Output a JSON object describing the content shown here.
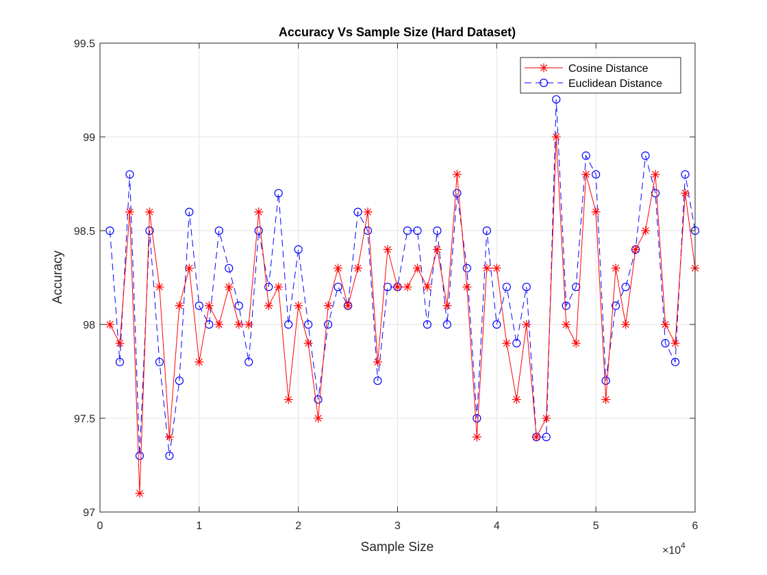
{
  "chart_data": {
    "type": "line",
    "title": "Accuracy Vs Sample Size (Hard Dataset)",
    "xlabel": "Sample Size",
    "ylabel": "Accuracy",
    "x_exponent_label": "×10",
    "x_exponent_power": "4",
    "xlim": [
      0,
      60000
    ],
    "ylim": [
      97,
      99.5
    ],
    "x_ticks": [
      0,
      10000,
      20000,
      30000,
      40000,
      50000,
      60000
    ],
    "x_tick_labels": [
      "0",
      "1",
      "2",
      "3",
      "4",
      "5",
      "6"
    ],
    "y_ticks": [
      97,
      97.5,
      98,
      98.5,
      99,
      99.5
    ],
    "y_tick_labels": [
      "97",
      "97.5",
      "98",
      "98.5",
      "99",
      "99.5"
    ],
    "grid": true,
    "legend_position": "top-right",
    "x": [
      1000,
      2000,
      3000,
      4000,
      5000,
      6000,
      7000,
      8000,
      9000,
      10000,
      11000,
      12000,
      13000,
      14000,
      15000,
      16000,
      17000,
      18000,
      19000,
      20000,
      21000,
      22000,
      23000,
      24000,
      25000,
      26000,
      27000,
      28000,
      29000,
      30000,
      31000,
      32000,
      33000,
      34000,
      35000,
      36000,
      37000,
      38000,
      39000,
      40000,
      41000,
      42000,
      43000,
      44000,
      45000,
      46000,
      47000,
      48000,
      49000,
      50000,
      51000,
      52000,
      53000,
      54000,
      55000,
      56000,
      57000,
      58000,
      59000,
      60000
    ],
    "series": [
      {
        "name": "Cosine Distance",
        "color": "#ff0000",
        "line_style": "solid",
        "marker": "asterisk",
        "values": [
          98.0,
          97.9,
          98.6,
          97.1,
          98.6,
          98.2,
          97.4,
          98.1,
          98.3,
          97.8,
          98.1,
          98.0,
          98.2,
          98.0,
          98.0,
          98.6,
          98.1,
          98.2,
          97.6,
          98.1,
          97.9,
          97.5,
          98.1,
          98.3,
          98.1,
          98.3,
          98.6,
          97.8,
          98.4,
          98.2,
          98.2,
          98.3,
          98.2,
          98.4,
          98.1,
          98.8,
          98.2,
          97.4,
          98.3,
          98.3,
          97.9,
          97.6,
          98.0,
          97.4,
          97.5,
          99.0,
          98.0,
          97.9,
          98.8,
          98.6,
          97.6,
          98.3,
          98.0,
          98.4,
          98.5,
          98.8,
          98.0,
          97.9,
          98.7,
          98.3
        ]
      },
      {
        "name": "Euclidean Distance",
        "color": "#0000ff",
        "line_style": "dashed",
        "marker": "circle",
        "values": [
          98.5,
          97.8,
          98.8,
          97.3,
          98.5,
          97.8,
          97.3,
          97.7,
          98.6,
          98.1,
          98.0,
          98.5,
          98.3,
          98.1,
          97.8,
          98.5,
          98.2,
          98.7,
          98.0,
          98.4,
          98.0,
          97.6,
          98.0,
          98.2,
          98.1,
          98.6,
          98.5,
          97.7,
          98.2,
          98.2,
          98.5,
          98.5,
          98.0,
          98.5,
          98.0,
          98.7,
          98.3,
          97.5,
          98.5,
          98.0,
          98.2,
          97.9,
          98.2,
          97.4,
          97.4,
          99.2,
          98.1,
          98.2,
          98.9,
          98.8,
          97.7,
          98.1,
          98.2,
          98.4,
          98.9,
          98.7,
          97.9,
          97.8,
          98.8,
          98.5
        ]
      }
    ]
  }
}
